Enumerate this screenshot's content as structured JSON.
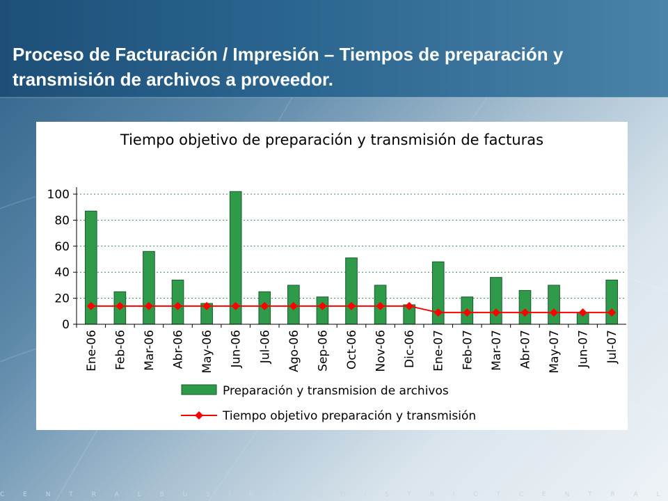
{
  "slide": {
    "title": "Proceso de Facturación / Impresión – Tiempos de preparación y transmisión de archivos a proveedor.",
    "footer": "C E N T R A L B U S I N E S S D I S T R I C T C E N T R A L B U S I N E S S D I S T R I C T C E N T R A"
  },
  "colors": {
    "bar_fill": "#2e9a4a",
    "bar_stroke": "#1b5a2c",
    "line": "#ff0000",
    "grid": "#3a8a4a"
  },
  "chart_data": {
    "type": "bar",
    "title": "Tiempo objetivo de preparación y transmisión de facturas",
    "categories": [
      "Ene-06",
      "Feb-06",
      "Mar-06",
      "Abr-06",
      "May-06",
      "Jun-06",
      "Jul-06",
      "Ago-06",
      "Sep-06",
      "Oct-06",
      "Nov-06",
      "Dic-06",
      "Ene-07",
      "Feb-07",
      "Mar-07",
      "Abr-07",
      "May-07",
      "Jun-07",
      "Jul-07"
    ],
    "series": [
      {
        "name": "Preparación y transmision de archivos",
        "kind": "bar",
        "values": [
          87,
          25,
          56,
          34,
          16,
          102,
          25,
          30,
          21,
          51,
          30,
          15,
          48,
          21,
          36,
          26,
          30,
          9,
          34
        ]
      },
      {
        "name": "Tiempo objetivo preparación y transmisión",
        "kind": "line",
        "values": [
          14,
          14,
          14,
          14,
          14,
          14,
          14,
          14,
          14,
          14,
          14,
          14,
          9,
          9,
          9,
          9,
          9,
          9,
          9
        ]
      }
    ],
    "yticks": [
      0,
      20,
      40,
      60,
      80,
      100
    ],
    "ylim": [
      0,
      100
    ],
    "grid": true,
    "legend": "bottom"
  }
}
